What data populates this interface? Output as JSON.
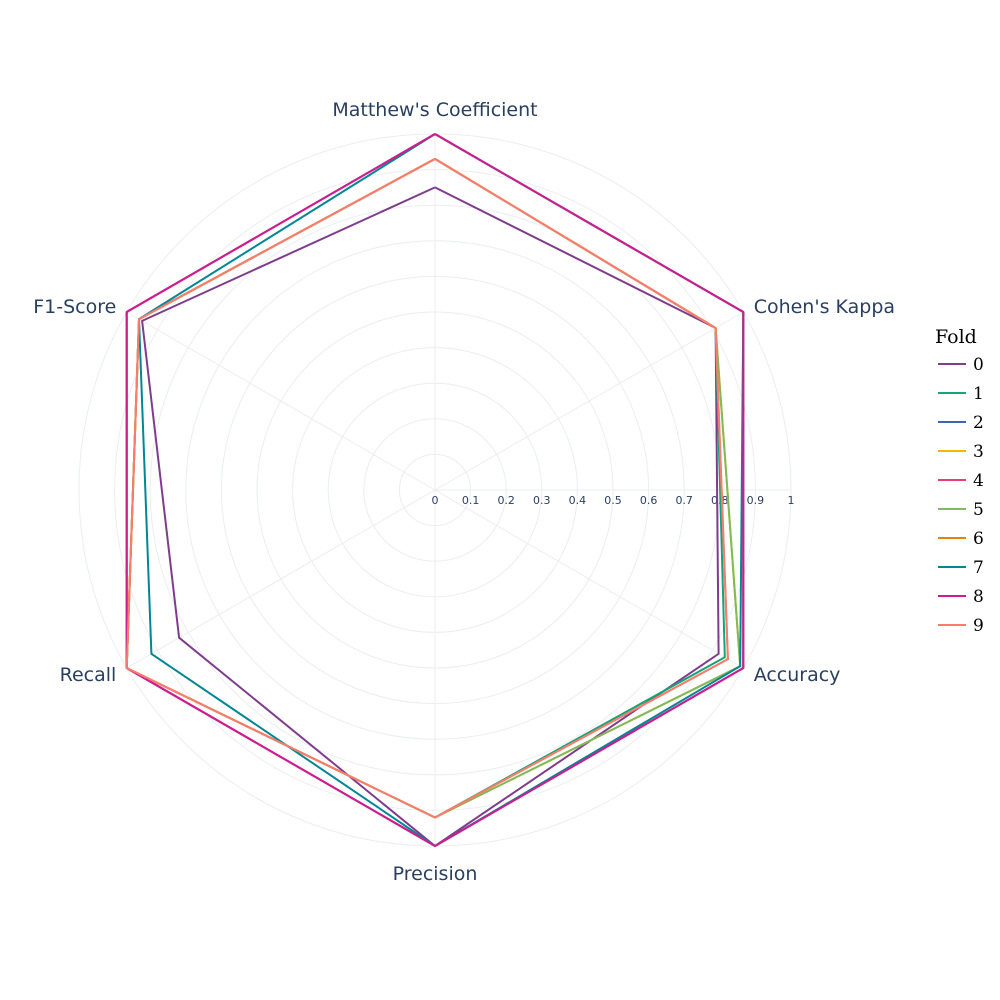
{
  "chart_data": {
    "type": "radar",
    "axes": [
      "Matthew's Coefficient",
      "Cohen's Kappa",
      "Accuracy",
      "Precision",
      "Recall",
      "F1-Score"
    ],
    "radial_range": [
      0,
      1
    ],
    "radial_ticks": [
      "0",
      "0.1",
      "0.2",
      "0.3",
      "0.4",
      "0.5",
      "0.6",
      "0.7",
      "0.8",
      "0.9",
      "1"
    ],
    "grid": true,
    "legend": {
      "title": "Fold",
      "placement": "right"
    },
    "series": [
      {
        "name": "0",
        "color": "#7f3c8d",
        "values": [
          0.85,
          0.91,
          0.92,
          1.0,
          0.83,
          0.95
        ]
      },
      {
        "name": "1",
        "color": "#11a579",
        "values": [
          0.93,
          0.91,
          0.94,
          0.92,
          1.0,
          0.96
        ]
      },
      {
        "name": "2",
        "color": "#3969ac",
        "values": [
          1.0,
          1.0,
          1.0,
          1.0,
          1.0,
          1.0
        ]
      },
      {
        "name": "3",
        "color": "#f2b701",
        "values": [
          0.93,
          0.91,
          0.99,
          0.92,
          1.0,
          0.96
        ]
      },
      {
        "name": "4",
        "color": "#e73f74",
        "values": [
          1.0,
          1.0,
          1.0,
          1.0,
          1.0,
          1.0
        ]
      },
      {
        "name": "5",
        "color": "#80ba5a",
        "values": [
          0.93,
          0.91,
          0.99,
          0.92,
          1.0,
          0.96
        ]
      },
      {
        "name": "6",
        "color": "#e68310",
        "values": [
          0.93,
          0.91,
          0.95,
          0.92,
          1.0,
          0.96
        ]
      },
      {
        "name": "7",
        "color": "#008695",
        "values": [
          1.0,
          1.0,
          0.99,
          1.0,
          0.92,
          0.96
        ]
      },
      {
        "name": "8",
        "color": "#cf1c90",
        "values": [
          1.0,
          1.0,
          1.0,
          1.0,
          1.0,
          1.0
        ]
      },
      {
        "name": "9",
        "color": "#f97b72",
        "values": [
          0.93,
          0.91,
          0.95,
          0.92,
          1.0,
          0.96
        ]
      }
    ]
  }
}
